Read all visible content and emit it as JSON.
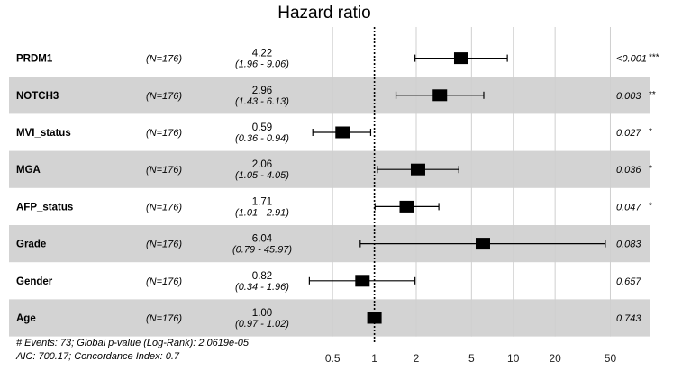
{
  "chart_data": {
    "type": "forest",
    "title": "Hazard ratio",
    "xscale": "log",
    "xlim": [
      0.3,
      70
    ],
    "xticks": [
      "0.5",
      "1",
      "2",
      "5",
      "10",
      "20",
      "50"
    ],
    "reference_line": 1,
    "rows": [
      {
        "variable": "PRDM1",
        "n": "(N=176)",
        "hr": 4.22,
        "hr_label": "4.22",
        "ci_low": 1.96,
        "ci_high": 9.06,
        "ci_label": "(1.96 - 9.06)",
        "p_label": "<0.001",
        "stars": "***"
      },
      {
        "variable": "NOTCH3",
        "n": "(N=176)",
        "hr": 2.96,
        "hr_label": "2.96",
        "ci_low": 1.43,
        "ci_high": 6.13,
        "ci_label": "(1.43 - 6.13)",
        "p_label": "0.003",
        "stars": "**"
      },
      {
        "variable": "MVI_status",
        "n": "(N=176)",
        "hr": 0.59,
        "hr_label": "0.59",
        "ci_low": 0.36,
        "ci_high": 0.94,
        "ci_label": "(0.36 - 0.94)",
        "p_label": "0.027",
        "stars": "*"
      },
      {
        "variable": "MGA",
        "n": "(N=176)",
        "hr": 2.06,
        "hr_label": "2.06",
        "ci_low": 1.05,
        "ci_high": 4.05,
        "ci_label": "(1.05 - 4.05)",
        "p_label": "0.036",
        "stars": "*"
      },
      {
        "variable": "AFP_status",
        "n": "(N=176)",
        "hr": 1.71,
        "hr_label": "1.71",
        "ci_low": 1.01,
        "ci_high": 2.91,
        "ci_label": "(1.01 - 2.91)",
        "p_label": "0.047",
        "stars": "*"
      },
      {
        "variable": "Grade",
        "n": "(N=176)",
        "hr": 6.04,
        "hr_label": "6.04",
        "ci_low": 0.79,
        "ci_high": 45.97,
        "ci_label": "(0.79 - 45.97)",
        "p_label": "0.083",
        "stars": ""
      },
      {
        "variable": "Gender",
        "n": "(N=176)",
        "hr": 0.82,
        "hr_label": "0.82",
        "ci_low": 0.34,
        "ci_high": 1.96,
        "ci_label": "(0.34 - 1.96)",
        "p_label": "0.657",
        "stars": ""
      },
      {
        "variable": "Age",
        "n": "(N=176)",
        "hr": 1.0,
        "hr_label": "1.00",
        "ci_low": 0.97,
        "ci_high": 1.02,
        "ci_label": "(0.97 - 1.02)",
        "p_label": "0.743",
        "stars": ""
      }
    ],
    "footnote_line1": "# Events: 73; Global p-value (Log-Rank): 2.0619e-05",
    "footnote_line2": "AIC: 700.17; Concordance Index: 0.7",
    "colors": {
      "band": "#d3d3d3",
      "grid": "#cfcfcf",
      "mark": "#000000"
    }
  }
}
